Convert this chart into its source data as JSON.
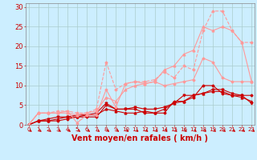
{
  "background_color": "#cceeff",
  "grid_color": "#aacccc",
  "xlabel": "Vent moyen/en rafales ( km/h )",
  "xlabel_color": "#cc0000",
  "xlabel_fontsize": 7,
  "yticks": [
    0,
    5,
    10,
    15,
    20,
    25,
    30
  ],
  "xticks": [
    0,
    1,
    2,
    3,
    4,
    5,
    6,
    7,
    8,
    9,
    10,
    11,
    12,
    13,
    14,
    15,
    16,
    17,
    18,
    19,
    20,
    21,
    22,
    23
  ],
  "xlim": [
    -0.3,
    23.3
  ],
  "ylim": [
    0,
    31
  ],
  "tick_color": "#cc0000",
  "series": [
    {
      "x": [
        0,
        1,
        2,
        3,
        4,
        5,
        6,
        7,
        8,
        9,
        10,
        11,
        12,
        13,
        14,
        15,
        16,
        17,
        18,
        19,
        20,
        21,
        22,
        23
      ],
      "y": [
        0,
        1,
        1,
        1,
        1.5,
        2,
        2,
        2,
        5,
        4,
        4,
        4,
        3,
        3,
        3,
        6,
        6,
        7,
        10,
        10,
        8,
        7.5,
        7.5,
        7.5
      ],
      "color": "#cc0000",
      "alpha": 1.0,
      "marker": "D",
      "markersize": 1.5,
      "linewidth": 0.8
    },
    {
      "x": [
        0,
        1,
        2,
        3,
        4,
        5,
        6,
        7,
        8,
        9,
        10,
        11,
        12,
        13,
        14,
        15,
        16,
        17,
        18,
        19,
        20,
        21,
        22,
        23
      ],
      "y": [
        0,
        1,
        1,
        1.5,
        2,
        2,
        2.5,
        2.5,
        4,
        3.5,
        3,
        3,
        3.5,
        3,
        4,
        5.5,
        6,
        7.5,
        8,
        8.5,
        8.5,
        7.5,
        7,
        6
      ],
      "color": "#cc0000",
      "alpha": 1.0,
      "marker": "^",
      "markersize": 2.0,
      "linewidth": 0.8
    },
    {
      "x": [
        0,
        1,
        2,
        3,
        4,
        5,
        6,
        7,
        8,
        9,
        10,
        11,
        12,
        13,
        14,
        15,
        16,
        17,
        18,
        19,
        20,
        21,
        22,
        23
      ],
      "y": [
        0,
        1,
        1.5,
        2,
        2,
        2.5,
        2.5,
        3,
        5.5,
        4,
        4,
        4.5,
        4,
        4,
        4.5,
        5.5,
        7.5,
        7.5,
        8,
        9,
        9,
        8,
        7.5,
        5.5
      ],
      "color": "#cc0000",
      "alpha": 1.0,
      "marker": "v",
      "markersize": 2.0,
      "linewidth": 0.8
    },
    {
      "x": [
        0,
        1,
        2,
        3,
        4,
        5,
        6,
        7,
        8,
        9,
        10,
        11,
        12,
        13,
        14,
        15,
        16,
        17,
        18,
        19,
        20,
        21,
        22,
        23
      ],
      "y": [
        0,
        3,
        3,
        3,
        3.5,
        0.5,
        2.5,
        2.5,
        9,
        4.5,
        10.5,
        11,
        10.5,
        11,
        10,
        10.5,
        11,
        11.5,
        17,
        16,
        12,
        11,
        11,
        11
      ],
      "color": "#ff9999",
      "alpha": 1.0,
      "marker": "D",
      "markersize": 1.5,
      "linewidth": 0.8,
      "linestyle": "-"
    },
    {
      "x": [
        0,
        1,
        2,
        3,
        4,
        5,
        6,
        7,
        8,
        9,
        10,
        11,
        12,
        13,
        14,
        15,
        16,
        17,
        18,
        19,
        20,
        21,
        22,
        23
      ],
      "y": [
        0,
        3,
        3,
        3.5,
        3.5,
        3,
        3,
        4,
        16,
        9,
        10.5,
        11,
        11,
        11.5,
        13.5,
        12,
        15,
        14,
        24,
        29,
        29,
        24,
        21,
        21
      ],
      "color": "#ff9999",
      "alpha": 1.0,
      "marker": "D",
      "markersize": 1.5,
      "linewidth": 0.8,
      "linestyle": "--"
    },
    {
      "x": [
        0,
        1,
        2,
        3,
        4,
        5,
        6,
        7,
        8,
        9,
        10,
        11,
        12,
        13,
        14,
        15,
        16,
        17,
        18,
        19,
        20,
        21,
        22,
        23
      ],
      "y": [
        0,
        3,
        3,
        3,
        3,
        2.5,
        3,
        3.5,
        7,
        6,
        9,
        10,
        10.5,
        11,
        14,
        15,
        18,
        19,
        25,
        24,
        25,
        24,
        21,
        11
      ],
      "color": "#ff9999",
      "alpha": 1.0,
      "marker": "^",
      "markersize": 2.0,
      "linewidth": 0.8,
      "linestyle": "-"
    }
  ]
}
